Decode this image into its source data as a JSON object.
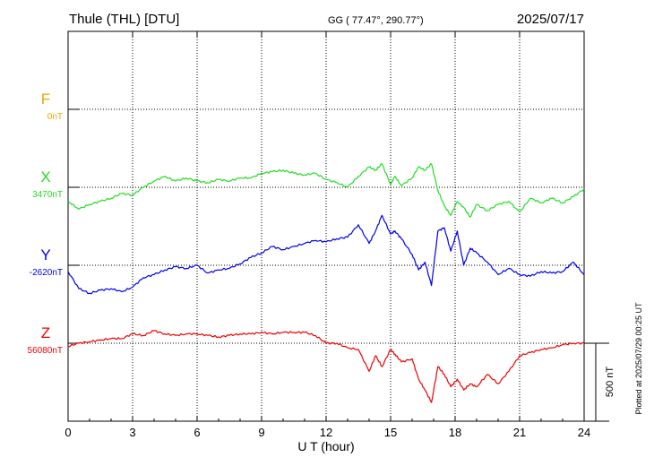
{
  "header": {
    "station": "Thule (THL)  [DTU]",
    "coords": "GG ( 77.47°, 290.77°)",
    "date": "2025/07/17"
  },
  "side_note": "Plotted at 2025/07/29 00:25 UT",
  "chart_data": {
    "type": "line",
    "xlabel": "U T (hour)",
    "xlim": [
      0,
      24
    ],
    "x_ticks": [
      "0",
      "3",
      "6",
      "9",
      "12",
      "15",
      "18",
      "21",
      "24"
    ],
    "grid": true,
    "scale_bar": {
      "label": "500 nT",
      "nT": 500
    },
    "series": [
      {
        "name": "F",
        "baseline_label": "0nT",
        "baseline_nT": 0,
        "color": "#f0a500",
        "x": [],
        "values": []
      },
      {
        "name": "X",
        "baseline_label": "3470nT",
        "baseline_nT": 3470,
        "color": "#22dd22",
        "x": [
          0,
          0.5,
          1,
          1.5,
          2,
          2.5,
          3,
          3.5,
          4,
          4.5,
          5,
          5.5,
          6,
          6.5,
          7,
          7.5,
          8,
          8.5,
          9,
          9.5,
          10,
          10.5,
          11,
          11.5,
          12,
          12.5,
          13,
          13.5,
          14,
          14.3,
          14.6,
          15,
          15.2,
          15.5,
          16,
          16.3,
          16.6,
          16.9,
          17.2,
          17.5,
          17.8,
          18.1,
          18.4,
          18.7,
          19,
          19.5,
          20,
          20.5,
          21,
          21.5,
          22,
          22.5,
          23,
          23.5,
          24
        ],
        "values": [
          3380,
          3330,
          3360,
          3380,
          3400,
          3430,
          3420,
          3470,
          3510,
          3540,
          3510,
          3530,
          3510,
          3500,
          3520,
          3510,
          3530,
          3530,
          3560,
          3570,
          3580,
          3560,
          3550,
          3560,
          3520,
          3500,
          3470,
          3540,
          3600,
          3580,
          3620,
          3490,
          3540,
          3480,
          3530,
          3600,
          3580,
          3620,
          3450,
          3350,
          3290,
          3380,
          3340,
          3280,
          3360,
          3320,
          3360,
          3380,
          3310,
          3400,
          3370,
          3400,
          3370,
          3410,
          3460
        ]
      },
      {
        "name": "Y",
        "baseline_label": "-2620nT",
        "baseline_nT": -2620,
        "color": "#0000ee",
        "x": [
          0,
          0.5,
          1,
          1.5,
          2,
          2.5,
          3,
          3.5,
          4,
          4.5,
          5,
          5.5,
          6,
          6.5,
          7,
          7.5,
          8,
          8.5,
          9,
          9.5,
          10,
          10.5,
          11,
          11.5,
          12,
          12.5,
          13,
          13.5,
          14,
          14.3,
          14.6,
          15,
          15.2,
          15.5,
          16,
          16.3,
          16.6,
          16.9,
          17.2,
          17.5,
          17.8,
          18.1,
          18.4,
          18.7,
          19,
          19.5,
          20,
          20.5,
          21,
          21.5,
          22,
          22.5,
          23,
          23.5,
          24
        ],
        "values": [
          -2660,
          -2770,
          -2800,
          -2780,
          -2770,
          -2790,
          -2760,
          -2700,
          -2680,
          -2650,
          -2630,
          -2640,
          -2620,
          -2670,
          -2650,
          -2640,
          -2610,
          -2570,
          -2540,
          -2500,
          -2520,
          -2500,
          -2480,
          -2460,
          -2470,
          -2450,
          -2440,
          -2360,
          -2480,
          -2400,
          -2300,
          -2420,
          -2400,
          -2450,
          -2550,
          -2650,
          -2600,
          -2750,
          -2400,
          -2380,
          -2530,
          -2400,
          -2620,
          -2510,
          -2540,
          -2600,
          -2680,
          -2640,
          -2680,
          -2690,
          -2660,
          -2670,
          -2660,
          -2600,
          -2680
        ]
      },
      {
        "name": "Z",
        "baseline_label": "56080nT",
        "baseline_nT": 56080,
        "color": "#ee0000",
        "x": [
          0,
          0.5,
          1,
          1.5,
          2,
          2.5,
          3,
          3.5,
          4,
          4.5,
          5,
          5.5,
          6,
          6.5,
          7,
          7.5,
          8,
          8.5,
          9,
          9.5,
          10,
          10.5,
          11,
          11.5,
          12,
          12.5,
          13,
          13.5,
          14,
          14.3,
          14.6,
          15,
          15.2,
          15.5,
          16,
          16.3,
          16.6,
          16.9,
          17.2,
          17.5,
          17.8,
          18.1,
          18.4,
          18.7,
          19,
          19.5,
          20,
          20.5,
          21,
          21.5,
          22,
          22.5,
          23,
          23.5,
          24
        ],
        "values": [
          56060,
          56080,
          56090,
          56100,
          56110,
          56110,
          56140,
          56130,
          56160,
          56140,
          56130,
          56140,
          56140,
          56130,
          56120,
          56130,
          56140,
          56140,
          56150,
          56140,
          56150,
          56150,
          56150,
          56130,
          56080,
          56080,
          56050,
          56040,
          55900,
          56000,
          55930,
          56040,
          56010,
          55960,
          55980,
          55850,
          55780,
          55700,
          55930,
          55880,
          55800,
          55850,
          55780,
          55820,
          55800,
          55880,
          55820,
          55900,
          56000,
          56020,
          56040,
          56050,
          56070,
          56080,
          56080
        ]
      }
    ]
  }
}
